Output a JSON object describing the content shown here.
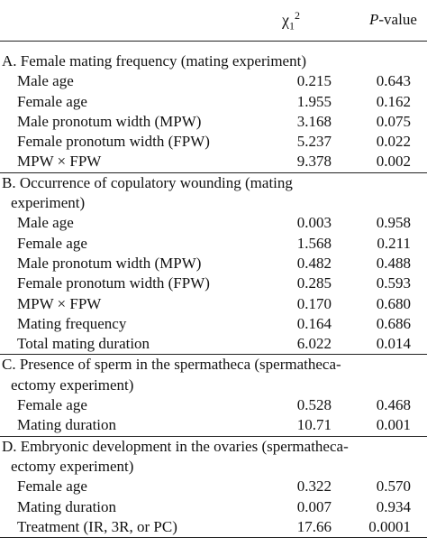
{
  "header": {
    "chi": {
      "symbol": "χ",
      "sub": "1",
      "sup": "2"
    },
    "p": {
      "italic": "P",
      "rest": "-value"
    }
  },
  "sections": [
    {
      "title": [
        "A. Female mating frequency (mating experiment)"
      ],
      "rows": [
        [
          "Male age",
          "0.215",
          "0.643"
        ],
        [
          "Female age",
          "1.955",
          "0.162"
        ],
        [
          "Male pronotum width (MPW)",
          "3.168",
          "0.075"
        ],
        [
          "Female pronotum width (FPW)",
          "5.237",
          "0.022"
        ],
        [
          "MPW × FPW",
          "9.378",
          "0.002"
        ]
      ]
    },
    {
      "title": [
        "B. Occurrence of copulatory wounding (mating",
        "experiment)"
      ],
      "rows": [
        [
          "Male age",
          "0.003",
          "0.958"
        ],
        [
          "Female age",
          "1.568",
          "0.211"
        ],
        [
          "Male pronotum width (MPW)",
          "0.482",
          "0.488"
        ],
        [
          "Female pronotum width (FPW)",
          "0.285",
          "0.593"
        ],
        [
          "MPW × FPW",
          "0.170",
          "0.680"
        ],
        [
          "Mating frequency",
          "0.164",
          "0.686"
        ],
        [
          "Total mating duration",
          "6.022",
          "0.014"
        ]
      ]
    },
    {
      "title": [
        "C. Presence of sperm in the spermatheca (spermatheca-",
        "ectomy experiment)"
      ],
      "rows": [
        [
          "Female age",
          "0.528",
          "0.468"
        ],
        [
          "Mating duration",
          "10.71",
          "0.001"
        ]
      ]
    },
    {
      "title": [
        "D. Embryonic development in the ovaries (spermatheca-",
        "ectomy experiment)"
      ],
      "rows": [
        [
          "Female age",
          "0.322",
          "0.570"
        ],
        [
          "Mating duration",
          "0.007",
          "0.934"
        ],
        [
          "Treatment (IR, 3R, or PC)",
          "17.66",
          "0.0001"
        ]
      ]
    }
  ]
}
